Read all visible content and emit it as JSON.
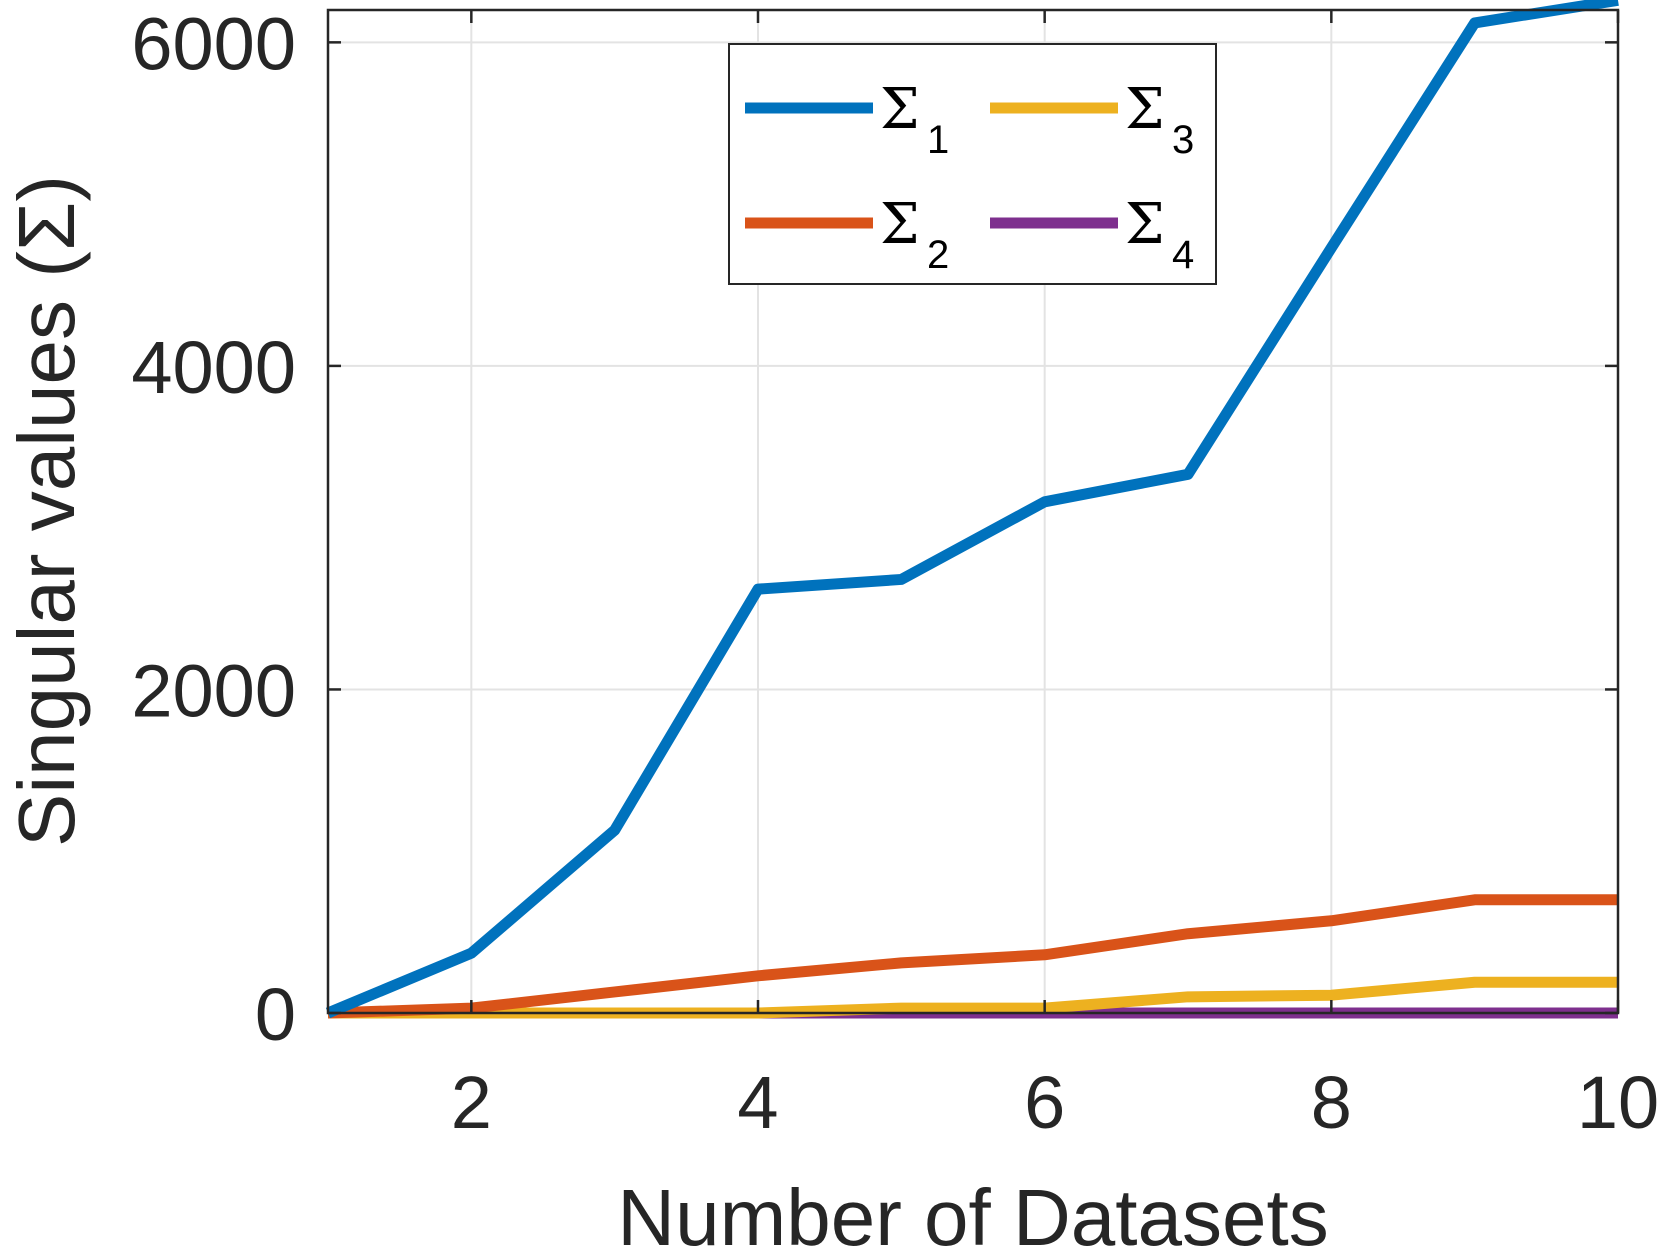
{
  "chart_data": {
    "type": "line",
    "title": "",
    "xlabel": "Number of Datasets",
    "ylabel": "Singular values (Σ)",
    "xlim": [
      1,
      10
    ],
    "ylim": [
      0,
      6200
    ],
    "xticks": [
      2,
      4,
      6,
      8,
      10
    ],
    "yticks": [
      0,
      2000,
      4000,
      6000
    ],
    "grid": true,
    "legend_position": "top-center",
    "x": [
      1,
      2,
      3,
      4,
      5,
      6,
      7,
      8,
      9,
      10
    ],
    "series": [
      {
        "name": "Σ",
        "subscript": "1",
        "color": "#0072BD",
        "values": [
          0,
          370,
          1130,
          2620,
          2680,
          3160,
          3330,
          4730,
          6120,
          6260
        ]
      },
      {
        "name": "Σ",
        "subscript": "2",
        "color": "#D95319",
        "values": [
          0,
          30,
          130,
          230,
          310,
          360,
          490,
          570,
          700,
          700
        ]
      },
      {
        "name": "Σ",
        "subscript": "3",
        "color": "#EDB120",
        "values": [
          0,
          0,
          0,
          0,
          30,
          30,
          100,
          110,
          190,
          190
        ]
      },
      {
        "name": "Σ",
        "subscript": "4",
        "color": "#7E2F8E",
        "values": [
          0,
          0,
          0,
          0,
          0,
          0,
          0,
          0,
          0,
          0
        ]
      }
    ]
  }
}
